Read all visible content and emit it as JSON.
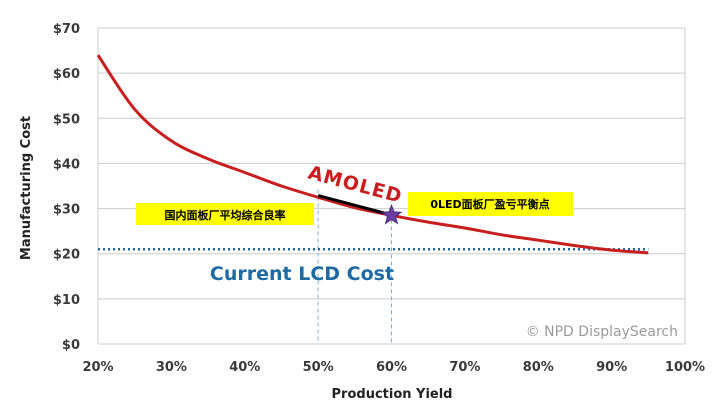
{
  "chart_data": {
    "type": "line",
    "xlabel": "Production Yield",
    "ylabel": "Manufacturing Cost",
    "x_ticks": [
      "20%",
      "30%",
      "40%",
      "50%",
      "60%",
      "70%",
      "80%",
      "90%",
      "100%"
    ],
    "y_ticks": [
      "$0",
      "$10",
      "$20",
      "$30",
      "$40",
      "$50",
      "$60",
      "$70"
    ],
    "xlim": [
      20,
      100
    ],
    "ylim": [
      0,
      70
    ],
    "grid": true,
    "series": [
      {
        "name": "AMOLED",
        "color": "#c81e1e",
        "x": [
          20,
          25,
          30,
          35,
          40,
          45,
          50,
          55,
          60,
          65,
          70,
          75,
          80,
          85,
          90,
          95
        ],
        "y": [
          64,
          52,
          45,
          41,
          38,
          35,
          32.5,
          30.2,
          28.5,
          27,
          25.7,
          24.2,
          23,
          21.8,
          20.8,
          20.2
        ]
      }
    ],
    "reference_line": {
      "label": "Current LCD Cost",
      "y": 21,
      "color": "#1f6aa3"
    },
    "markers": [
      {
        "x": 50,
        "y": 32,
        "label": "国内面板厂平均综合良率"
      },
      {
        "x": 60,
        "y": 28.5,
        "label": "0LED面板厂盈亏平衡点"
      }
    ],
    "credit": "© NPD DisplaySearch"
  }
}
